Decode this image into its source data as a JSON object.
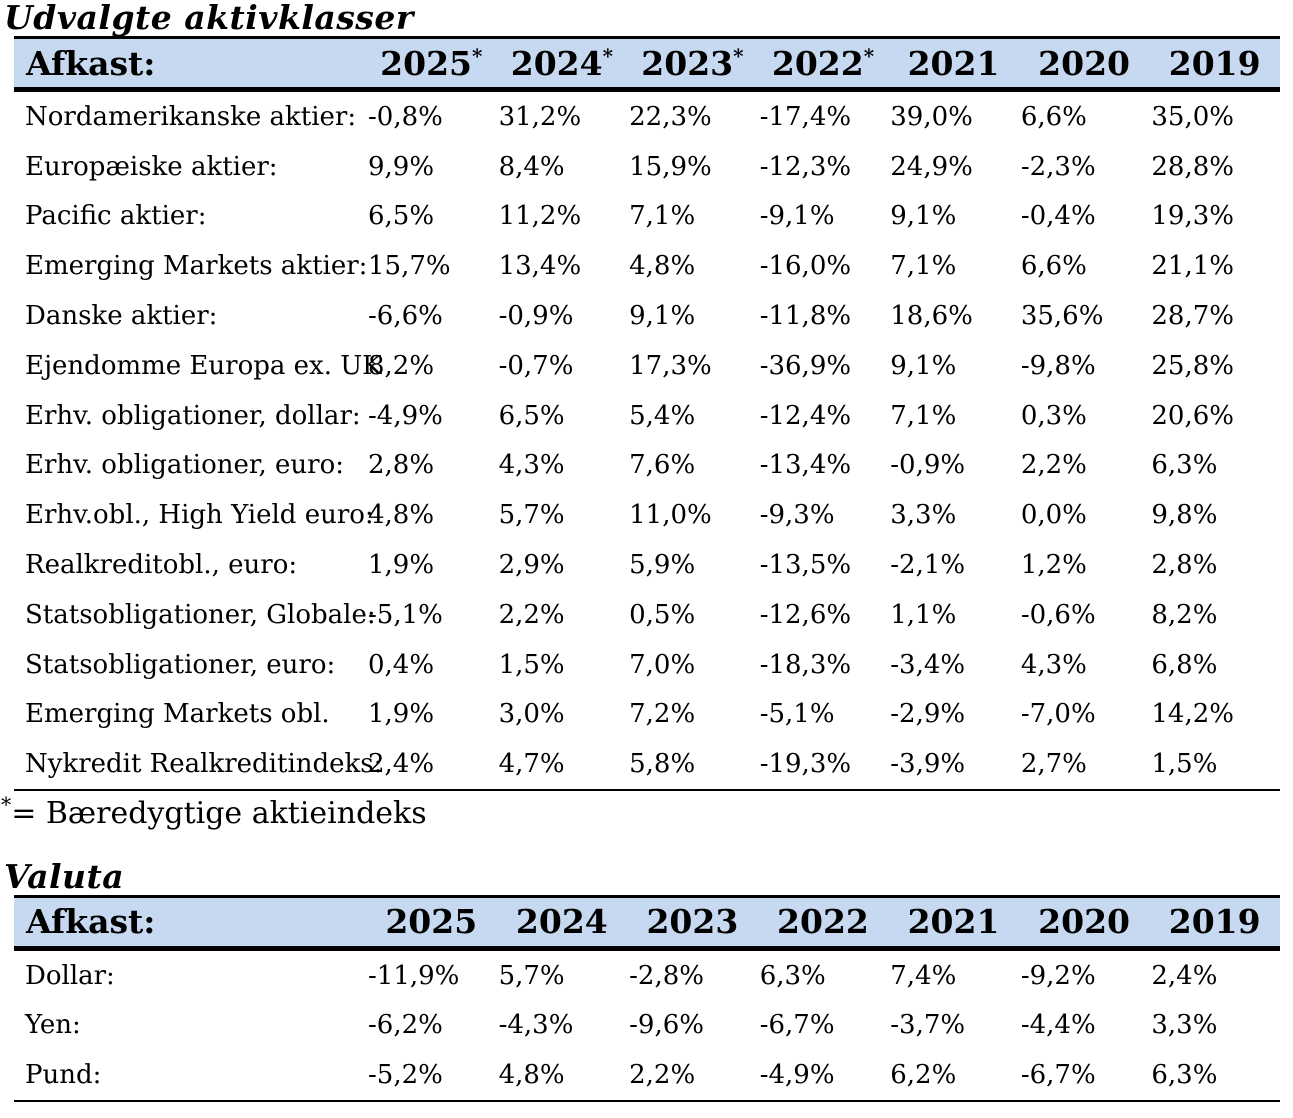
{
  "colors": {
    "header_bg": "#c6d9f0",
    "line": "#000000",
    "text": "#000000"
  },
  "sections": [
    {
      "id": "asset_classes",
      "title": "Udvalgte aktivklasser",
      "table": {
        "header_label": "Afkast:",
        "columns": [
          {
            "year": "2025",
            "suffix": "*"
          },
          {
            "year": "2024",
            "suffix": "*"
          },
          {
            "year": "2023",
            "suffix": "*"
          },
          {
            "year": "2022",
            "suffix": "*"
          },
          {
            "year": "2021",
            "suffix": ""
          },
          {
            "year": "2020",
            "suffix": ""
          },
          {
            "year": "2019",
            "suffix": ""
          }
        ],
        "rows": [
          {
            "label": "Nordamerikanske aktier:",
            "values": [
              "-0,8%",
              "31,2%",
              "22,3%",
              "-17,4%",
              "39,0%",
              "6,6%",
              "35,0%"
            ]
          },
          {
            "label": "Europæiske aktier:",
            "values": [
              "9,9%",
              "8,4%",
              "15,9%",
              "-12,3%",
              "24,9%",
              "-2,3%",
              "28,8%"
            ]
          },
          {
            "label": "Pacific aktier:",
            "values": [
              "6,5%",
              "11,2%",
              "7,1%",
              "-9,1%",
              "9,1%",
              "-0,4%",
              "19,3%"
            ]
          },
          {
            "label": "Emerging Markets aktier:",
            "values": [
              "15,7%",
              "13,4%",
              "4,8%",
              "-16,0%",
              "7,1%",
              "6,6%",
              "21,1%"
            ]
          },
          {
            "label": "Danske aktier:",
            "values": [
              "-6,6%",
              "-0,9%",
              "9,1%",
              "-11,8%",
              "18,6%",
              "35,6%",
              "28,7%"
            ]
          },
          {
            "label": "Ejendomme Europa ex. UK",
            "values": [
              "8,2%",
              "-0,7%",
              "17,3%",
              "-36,9%",
              "9,1%",
              "-9,8%",
              "25,8%"
            ]
          },
          {
            "label": "Erhv. obligationer, dollar:",
            "values": [
              "-4,9%",
              "6,5%",
              "5,4%",
              "-12,4%",
              "7,1%",
              "0,3%",
              "20,6%"
            ]
          },
          {
            "label": "Erhv. obligationer, euro:",
            "values": [
              "2,8%",
              "4,3%",
              "7,6%",
              "-13,4%",
              "-0,9%",
              "2,2%",
              "6,3%"
            ]
          },
          {
            "label": "Erhv.obl., High Yield euro:",
            "values": [
              "4,8%",
              "5,7%",
              "11,0%",
              "-9,3%",
              "3,3%",
              "0,0%",
              "9,8%"
            ]
          },
          {
            "label": "Realkreditobl., euro:",
            "values": [
              "1,9%",
              "2,9%",
              "5,9%",
              "-13,5%",
              "-2,1%",
              "1,2%",
              "2,8%"
            ]
          },
          {
            "label": "Statsobligationer, Globale:",
            "values": [
              "-5,1%",
              "2,2%",
              "0,5%",
              "-12,6%",
              "1,1%",
              "-0,6%",
              "8,2%"
            ]
          },
          {
            "label": "Statsobligationer, euro:",
            "values": [
              "0,4%",
              "1,5%",
              "7,0%",
              "-18,3%",
              "-3,4%",
              "4,3%",
              "6,8%"
            ]
          },
          {
            "label": "Emerging Markets obl.",
            "values": [
              "1,9%",
              "3,0%",
              "7,2%",
              "-5,1%",
              "-2,9%",
              "-7,0%",
              "14,2%"
            ]
          },
          {
            "label": "Nykredit Realkreditindeks:",
            "values": [
              "2,4%",
              "4,7%",
              "5,8%",
              "-19,3%",
              "-3,9%",
              "2,7%",
              "1,5%"
            ]
          }
        ]
      },
      "footnote": {
        "marker": "*",
        "text": "= Bæredygtige aktieindeks"
      }
    },
    {
      "id": "valuta",
      "title": "Valuta",
      "table": {
        "header_label": "Afkast:",
        "columns": [
          {
            "year": "2025",
            "suffix": ""
          },
          {
            "year": "2024",
            "suffix": ""
          },
          {
            "year": "2023",
            "suffix": ""
          },
          {
            "year": "2022",
            "suffix": ""
          },
          {
            "year": "2021",
            "suffix": ""
          },
          {
            "year": "2020",
            "suffix": ""
          },
          {
            "year": "2019",
            "suffix": ""
          }
        ],
        "rows": [
          {
            "label": "Dollar:",
            "values": [
              "-11,9%",
              "5,7%",
              "-2,8%",
              "6,3%",
              "7,4%",
              "-9,2%",
              "2,4%"
            ]
          },
          {
            "label": "Yen:",
            "values": [
              "-6,2%",
              "-4,3%",
              "-9,6%",
              "-6,7%",
              "-3,7%",
              "-4,4%",
              "3,3%"
            ]
          },
          {
            "label": "Pund:",
            "values": [
              "-5,2%",
              "4,8%",
              "2,2%",
              "-4,9%",
              "6,2%",
              "-6,7%",
              "6,3%"
            ]
          }
        ]
      }
    }
  ]
}
